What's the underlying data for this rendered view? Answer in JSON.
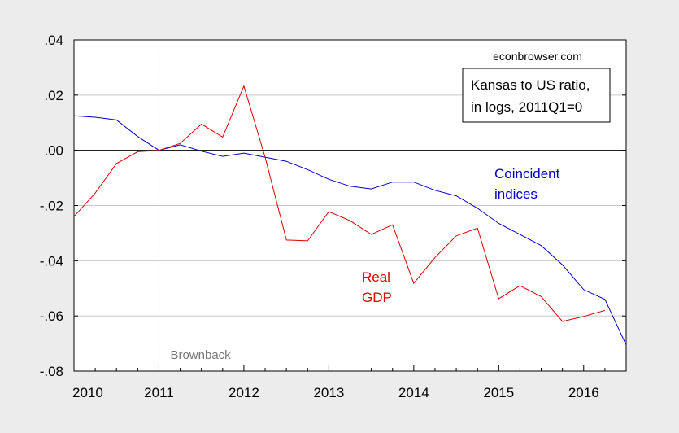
{
  "chart_data": {
    "type": "line",
    "source_label": "econbrowser.com",
    "legend_box": [
      "Kansas to US ratio,",
      "in logs, 2011Q1=0"
    ],
    "xlabel": "",
    "ylabel": "",
    "xlim": [
      2010,
      2016.5
    ],
    "ylim": [
      -0.08,
      0.04
    ],
    "x_ticks": [
      2010,
      2011,
      2012,
      2013,
      2014,
      2015,
      2016
    ],
    "x_tick_labels": [
      "2010",
      "2011",
      "2012",
      "2013",
      "2014",
      "2015",
      "2016"
    ],
    "y_ticks": [
      0.04,
      0.02,
      0.0,
      -0.02,
      -0.04,
      -0.06,
      -0.08
    ],
    "y_tick_labels": [
      ".04",
      ".02",
      ".00",
      "-.02",
      "-.04",
      "-.06",
      "-.08"
    ],
    "grid": true,
    "zero_line": true,
    "vline": {
      "x": 2011,
      "label": "Brownback"
    },
    "series": [
      {
        "name": "Coincident indices",
        "label_lines": [
          "Coincident",
          "indices"
        ],
        "color": "#0000cc",
        "x": [
          2010,
          2010.25,
          2010.5,
          2010.75,
          2011,
          2011.25,
          2011.5,
          2011.75,
          2012,
          2012.25,
          2012.5,
          2012.75,
          2013,
          2013.25,
          2013.5,
          2013.75,
          2014,
          2014.25,
          2014.5,
          2014.75,
          2015,
          2015.25,
          2015.5,
          2015.75,
          2016,
          2016.25,
          2016.5
        ],
        "values": [
          0.0125,
          0.012,
          0.011,
          0.005,
          0.0,
          0.002,
          -0.0003,
          -0.0022,
          -0.001,
          -0.0025,
          -0.004,
          -0.007,
          -0.0105,
          -0.013,
          -0.014,
          -0.0115,
          -0.0115,
          -0.0145,
          -0.0165,
          -0.021,
          -0.0265,
          -0.0305,
          -0.0345,
          -0.0415,
          -0.0505,
          -0.054,
          -0.0705
        ]
      },
      {
        "name": "Real GDP",
        "label_lines": [
          "Real",
          "GDP"
        ],
        "color": "#e00000",
        "x": [
          2010,
          2010.25,
          2010.5,
          2010.75,
          2011,
          2011.25,
          2011.5,
          2011.75,
          2012,
          2012.25,
          2012.5,
          2012.75,
          2013,
          2013.25,
          2013.5,
          2013.75,
          2014,
          2014.25,
          2014.5,
          2014.75,
          2015,
          2015.25,
          2015.5,
          2015.75,
          2016,
          2016.25
        ],
        "values": [
          -0.024,
          -0.0155,
          -0.0048,
          -0.0005,
          0.0,
          0.0025,
          0.0095,
          0.0048,
          0.0233,
          -0.0025,
          -0.0325,
          -0.0328,
          -0.0222,
          -0.0255,
          -0.0305,
          -0.027,
          -0.0482,
          -0.0388,
          -0.031,
          -0.0282,
          -0.0538,
          -0.049,
          -0.053,
          -0.062,
          -0.0602,
          -0.058
        ]
      }
    ]
  }
}
